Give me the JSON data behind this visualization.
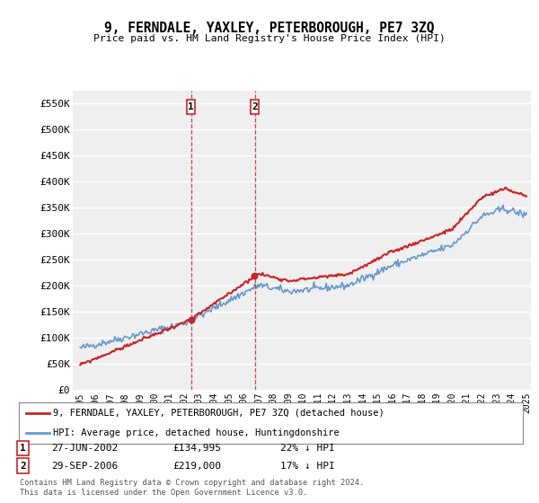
{
  "title": "9, FERNDALE, YAXLEY, PETERBOROUGH, PE7 3ZQ",
  "subtitle": "Price paid vs. HM Land Registry's House Price Index (HPI)",
  "ylabel_ticks": [
    "£0",
    "£50K",
    "£100K",
    "£150K",
    "£200K",
    "£250K",
    "£300K",
    "£350K",
    "£400K",
    "£450K",
    "£500K",
    "£550K"
  ],
  "ytick_values": [
    0,
    50000,
    100000,
    150000,
    200000,
    250000,
    300000,
    350000,
    400000,
    450000,
    500000,
    550000
  ],
  "ylim": [
    0,
    575000
  ],
  "background_color": "#ffffff",
  "plot_bg_color": "#efefef",
  "grid_color": "#ffffff",
  "hpi_color": "#6699cc",
  "price_color": "#cc2222",
  "purchase1": {
    "date": "27-JUN-2002",
    "price": "£134,995",
    "pct": "22% ↓ HPI",
    "year": 2002.46
  },
  "purchase2": {
    "date": "29-SEP-2006",
    "price": "£219,000",
    "pct": "17% ↓ HPI",
    "year": 2006.75
  },
  "footer": "Contains HM Land Registry data © Crown copyright and database right 2024.\nThis data is licensed under the Open Government Licence v3.0.",
  "legend_label1": "9, FERNDALE, YAXLEY, PETERBOROUGH, PE7 3ZQ (detached house)",
  "legend_label2": "HPI: Average price, detached house, Huntingdonshire",
  "x_start_year": 1995,
  "x_end_year": 2025
}
